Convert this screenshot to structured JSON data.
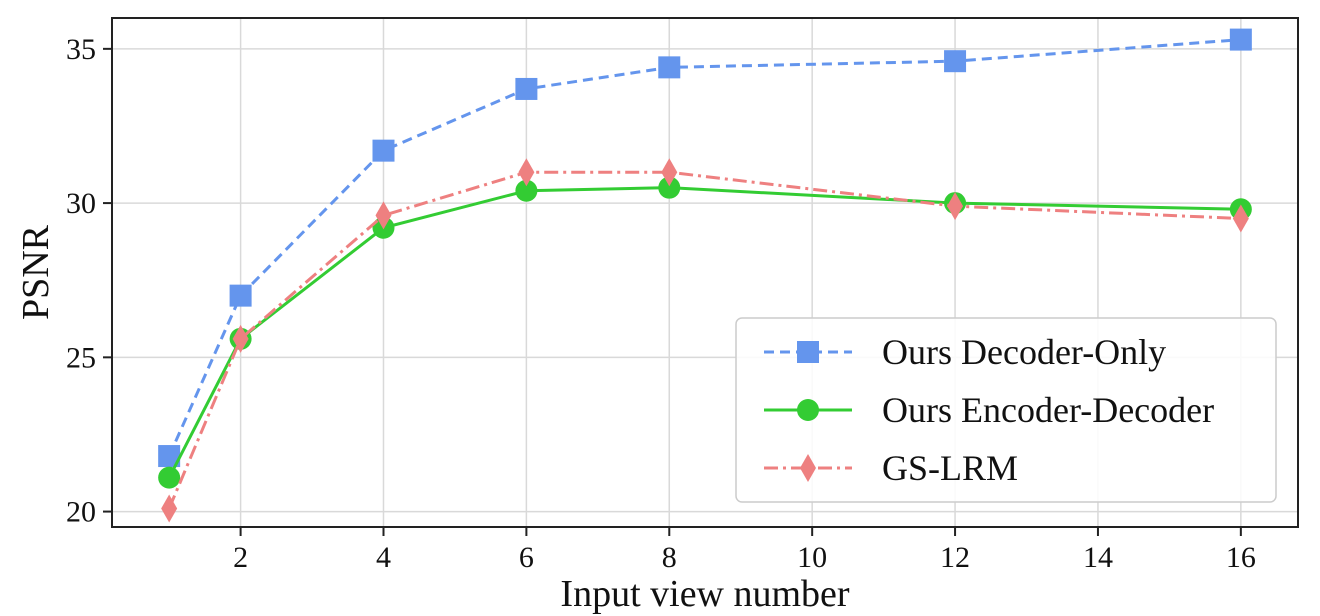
{
  "chart_data": {
    "type": "line",
    "xlabel": "Input view number",
    "ylabel": "PSNR",
    "xlim": [
      0.2,
      16.8
    ],
    "ylim": [
      19.5,
      36.0
    ],
    "xticks": [
      2,
      4,
      6,
      8,
      10,
      12,
      14,
      16
    ],
    "yticks": [
      20,
      25,
      30,
      35
    ],
    "grid": true,
    "legend_position": "lower-right",
    "series": [
      {
        "name": "Ours Decoder-Only",
        "color": "#6495ED",
        "marker": "square",
        "line_style": "dashed",
        "x": [
          1,
          2,
          4,
          6,
          8,
          12,
          16
        ],
        "y": [
          21.8,
          27.0,
          31.7,
          33.7,
          34.4,
          34.6,
          35.3
        ]
      },
      {
        "name": "Ours Encoder-Decoder",
        "color": "#33CC33",
        "marker": "circle",
        "line_style": "solid",
        "x": [
          1,
          2,
          4,
          6,
          8,
          12,
          16
        ],
        "y": [
          21.1,
          25.6,
          29.2,
          30.4,
          30.5,
          30.0,
          29.8
        ]
      },
      {
        "name": "GS-LRM",
        "color": "#EE8080",
        "marker": "diamond",
        "line_style": "dashdot",
        "x": [
          1,
          2,
          4,
          6,
          8,
          12,
          16
        ],
        "y": [
          20.1,
          25.6,
          29.6,
          31.0,
          31.0,
          29.9,
          29.5
        ]
      }
    ]
  }
}
